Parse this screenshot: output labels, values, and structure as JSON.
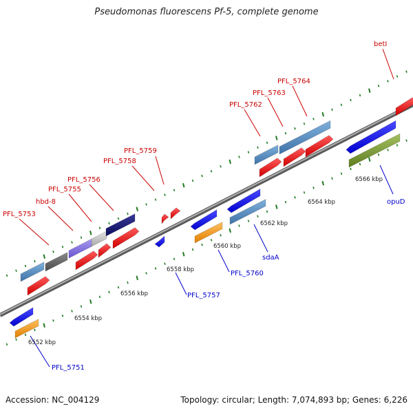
{
  "title": "Pseudomonas fluorescens Pf-5, complete genome",
  "footer": {
    "accession": "Accession: NC_004129",
    "summary": "Topology: circular; Length: 7,074,893 bp; Genes: 6,226"
  },
  "colors": {
    "backbone": "#8a8a8a",
    "label_top": "#cc0000",
    "label_bottom": "#0000cc",
    "tick_green": "#1f7a1f"
  },
  "scale_labels": [
    "6552 kbp",
    "6554 kbp",
    "6556 kbp",
    "6558 kbp",
    "6560 kbp",
    "6562 kbp",
    "6564 kbp",
    "6566 kbp"
  ],
  "top_labels": [
    "PFL_5753",
    "hbd-8",
    "PFL_5755",
    "PFL_5756",
    "PFL_5758",
    "PFL_5759",
    "PFL_5762",
    "PFL_5763",
    "PFL_5764",
    "betI"
  ],
  "bottom_labels": [
    "PFL_5751",
    "PFL_5757",
    "PFL_5760",
    "sdaA",
    "opuD"
  ]
}
